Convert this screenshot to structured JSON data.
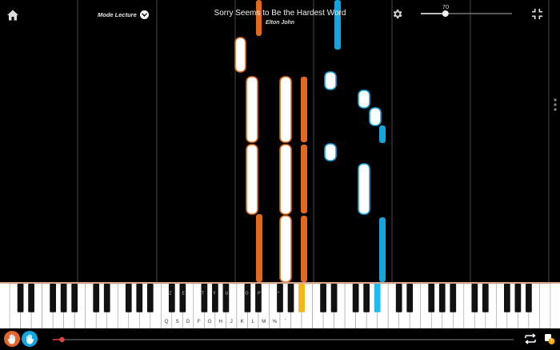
{
  "header": {
    "mode_label": "Mode Lecture",
    "song_title": "Sorry Seems to Be the Hardest Word",
    "artist": "Elton John",
    "speed": "70",
    "speed_fraction": 0.27
  },
  "icons": {
    "home": "home-icon",
    "settings": "gear-icon",
    "collapse": "collapse-icon",
    "more": "more-vertical-icon",
    "left_hand": "hand-icon",
    "right_hand": "hand-icon",
    "loop": "loop-icon",
    "hint": "hint-icon"
  },
  "colors": {
    "left_hand": "#e5662c",
    "right_hand": "#16a4dd",
    "note_fill": "#ffffff",
    "keyboard_border": "#d9a58d",
    "progress_thumb": "#e84040"
  },
  "keyboard": {
    "black_labels": [
      "Z",
      "E",
      "T",
      "Y",
      "U",
      "O",
      "P",
      "^"
    ],
    "white_labels": [
      "Q",
      "S",
      "D",
      "F",
      "G",
      "H",
      "J",
      "K",
      "L",
      "M",
      "%",
      "`"
    ]
  },
  "progress": {
    "fraction": 0.02
  }
}
